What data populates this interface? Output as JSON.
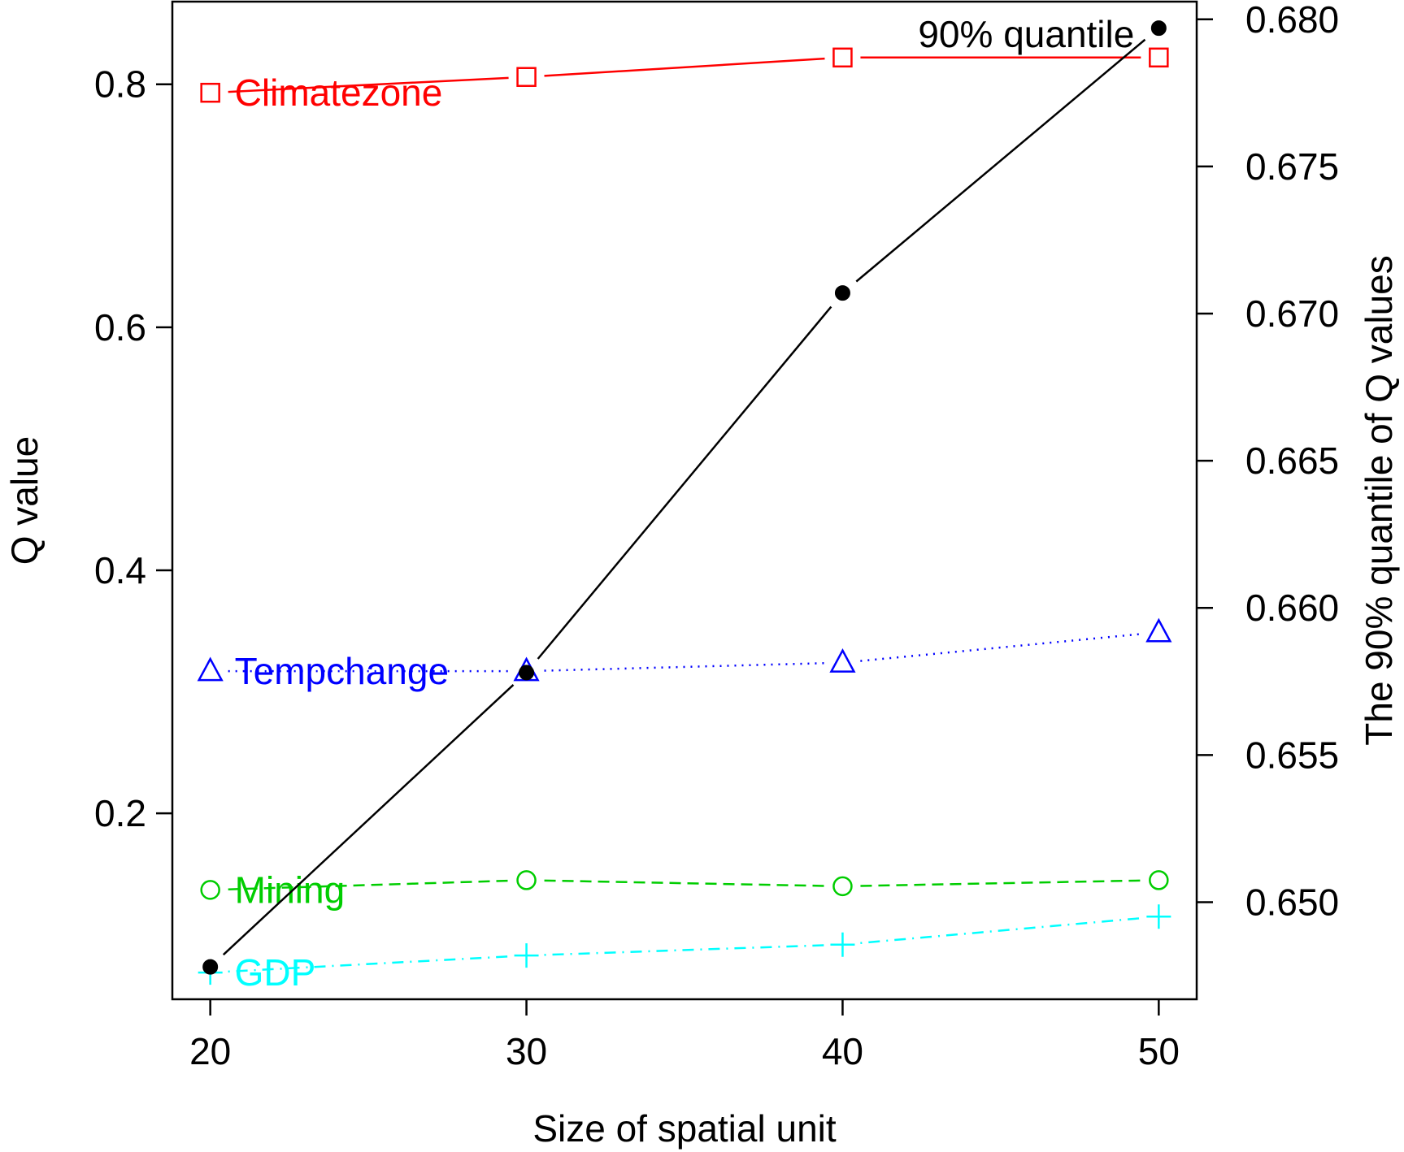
{
  "chart_data": {
    "type": "line",
    "x": [
      20,
      30,
      40,
      50
    ],
    "xlabel": "Size of spatial unit",
    "ylabel": "Q value",
    "ylabel_right": "The 90% quantile of Q values",
    "xlim": [
      18.8,
      51.2
    ],
    "ylim": [
      0.047,
      0.868
    ],
    "ylim_right": [
      0.6467,
      0.6806
    ],
    "xticks": [
      "20",
      "30",
      "40",
      "50"
    ],
    "yticks": [
      "0.2",
      "0.4",
      "0.6",
      "0.8"
    ],
    "yticks_right": [
      "0.650",
      "0.655",
      "0.660",
      "0.665",
      "0.670",
      "0.675",
      "0.680"
    ],
    "grid": false,
    "series": [
      {
        "name": "Climatezone",
        "axis": "left",
        "color": "#ff0000",
        "marker": "square",
        "line": "solid",
        "values": [
          0.793,
          0.806,
          0.822,
          0.822
        ]
      },
      {
        "name": "Tempchange",
        "axis": "left",
        "color": "#0000ff",
        "marker": "triangle",
        "line": "dotted",
        "values": [
          0.317,
          0.317,
          0.324,
          0.349
        ]
      },
      {
        "name": "Mining",
        "axis": "left",
        "color": "#00cd00",
        "marker": "circle",
        "line": "dashed",
        "values": [
          0.137,
          0.145,
          0.14,
          0.145
        ]
      },
      {
        "name": "GDP",
        "axis": "left",
        "color": "#00ffff",
        "marker": "plus",
        "line": "dotdash",
        "values": [
          0.069,
          0.083,
          0.092,
          0.115
        ]
      },
      {
        "name": "90% quantile",
        "axis": "right",
        "color": "#000000",
        "marker": "filled-circle",
        "line": "solid",
        "values": [
          0.6478,
          0.6578,
          0.6707,
          0.6797
        ]
      }
    ]
  }
}
